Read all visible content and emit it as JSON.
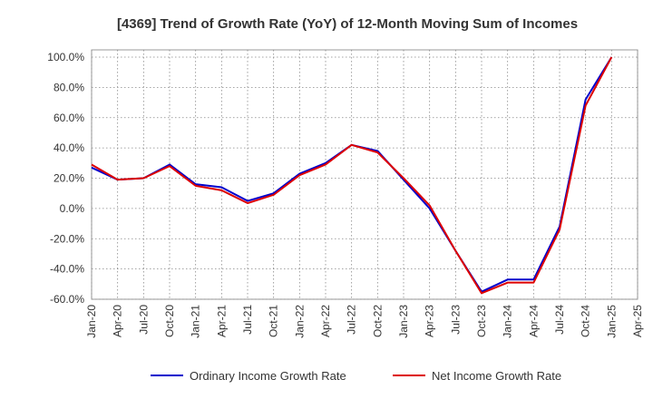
{
  "chart_data": {
    "type": "line",
    "title": "[4369]  Trend of Growth Rate (YoY) of 12-Month Moving Sum of Incomes",
    "xlabel": "",
    "ylabel": "",
    "x_ticks": [
      "Jan-20",
      "Apr-20",
      "Jul-20",
      "Oct-20",
      "Jan-21",
      "Apr-21",
      "Jul-21",
      "Oct-21",
      "Jan-22",
      "Apr-22",
      "Jul-22",
      "Oct-22",
      "Jan-23",
      "Apr-23",
      "Jul-23",
      "Oct-23",
      "Jan-24",
      "Apr-24",
      "Jul-24",
      "Oct-24",
      "Jan-25",
      "Apr-25"
    ],
    "y_ticks": [
      "100.0%",
      "80.0%",
      "60.0%",
      "40.0%",
      "20.0%",
      "0.0%",
      "-20.0%",
      "-40.0%",
      "-60.0%"
    ],
    "ylim": [
      -60,
      100
    ],
    "y_unit": "%",
    "grid": true,
    "legend_position": "bottom",
    "x": [
      "Jan-20",
      "Apr-20",
      "Jul-20",
      "Oct-20",
      "Jan-21",
      "Apr-21",
      "Jul-21",
      "Oct-21",
      "Jan-22",
      "Apr-22",
      "Jul-22",
      "Oct-22",
      "Jan-23",
      "Apr-23",
      "Jul-23",
      "Oct-23",
      "Jan-24",
      "Apr-24",
      "Jul-24",
      "Oct-24",
      "Jan-25"
    ],
    "series": [
      {
        "name": "Ordinary Income Growth Rate",
        "color": "#0000cc",
        "values": [
          27,
          19,
          20,
          29,
          16,
          14,
          5,
          10,
          23,
          30,
          42,
          38,
          19,
          0,
          -28,
          -55,
          -47,
          -47,
          -12,
          72,
          100
        ]
      },
      {
        "name": "Net Income Growth Rate",
        "color": "#dd0000",
        "values": [
          29,
          19,
          20,
          28,
          15,
          12,
          3.5,
          9,
          22,
          29,
          42,
          37,
          20,
          2,
          -28,
          -56,
          -49,
          -49,
          -14,
          68,
          100
        ]
      }
    ]
  }
}
